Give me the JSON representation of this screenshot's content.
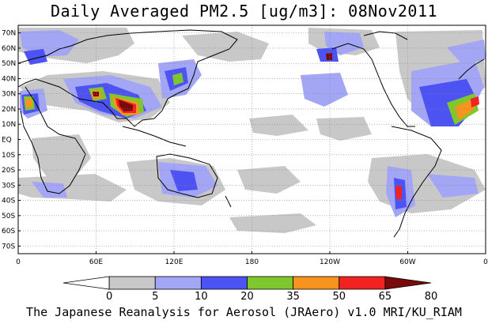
{
  "title": "Daily Averaged PM2.5 [ug/m3]: 08Nov2011",
  "footer": "The Japanese Reanalysis for Aerosol (JRAero) v1.0 MRI/KU_RIAM",
  "map": {
    "projection": "equirectangular",
    "lon_range": [
      0,
      360
    ],
    "lat_range": [
      -75,
      75
    ],
    "grid": "dotted",
    "lat_labels": [
      "70N",
      "60N",
      "50N",
      "40N",
      "30N",
      "20N",
      "10N",
      "EQ",
      "10S",
      "20S",
      "30S",
      "40S",
      "50S",
      "60S",
      "70S"
    ],
    "lat_values": [
      70,
      60,
      50,
      40,
      30,
      20,
      10,
      0,
      -10,
      -20,
      -30,
      -40,
      -50,
      -60,
      -70
    ],
    "lon_labels": [
      "0",
      "60E",
      "120E",
      "180",
      "120W",
      "60W",
      "0"
    ],
    "lon_values": [
      0,
      60,
      120,
      180,
      240,
      300,
      360
    ]
  },
  "colorbar": {
    "levels": [
      "0",
      "5",
      "10",
      "20",
      "35",
      "50",
      "65",
      "80"
    ],
    "colors": [
      "#ffffff",
      "#c8c8c8",
      "#a3a6f5",
      "#4d52f2",
      "#7ec82e",
      "#f7941d",
      "#f22222",
      "#7a0a0a"
    ]
  },
  "colors": {
    "background": "#ffffff",
    "frame": "#000000",
    "coastline": "#000000"
  }
}
